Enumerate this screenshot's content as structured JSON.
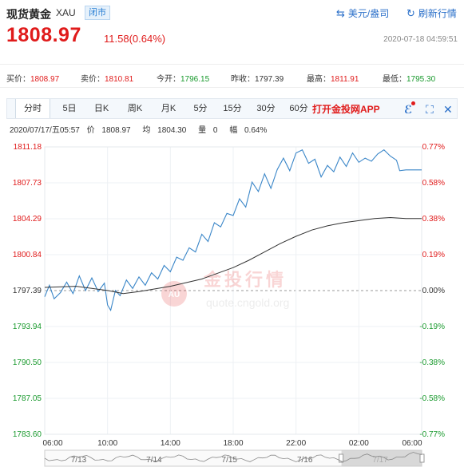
{
  "header": {
    "title": "现货黄金",
    "symbol": "XAU",
    "status": "闭市",
    "currency_label": "美元/盎司",
    "refresh_label": "刷新行情",
    "price": "1808.97",
    "change": "11.58(0.64%)",
    "datetime": "2020-07-18 04:59:51"
  },
  "stats": {
    "buy_label": "买价：",
    "buy": "1808.97",
    "sell_label": "卖价：",
    "sell": "1810.81",
    "open_label": "今开：",
    "open": "1796.15",
    "prev_label": "昨收：",
    "prev": "1797.39",
    "high_label": "最高：",
    "high": "1811.91",
    "low_label": "最低：",
    "low": "1795.30"
  },
  "tabs": [
    "分时",
    "5日",
    "日K",
    "周K",
    "月K",
    "5分",
    "15分",
    "30分",
    "60分"
  ],
  "promo": "打开金投网APP",
  "info": {
    "date": "2020/07/17/五05:57",
    "price_label": "价",
    "price": "1808.97",
    "avg_label": "均",
    "avg": "1804.30",
    "vol_label": "量",
    "vol": "0",
    "amp_label": "幅",
    "amp": "0.64%"
  },
  "watermark": {
    "brand": "金投行情",
    "url": "quote.cngold.org",
    "logo": "AU"
  },
  "colors": {
    "up": "#e01b1b",
    "down": "#1a9a2e",
    "line": "#3a86c8",
    "avg": "#333333",
    "accent": "#2a6fc9"
  },
  "chart_data": {
    "type": "line",
    "base": 1797.39,
    "y_labels": [
      "1811.18",
      "1807.73",
      "1804.29",
      "1800.84",
      "1797.39",
      "1793.94",
      "1790.50",
      "1787.05",
      "1783.60"
    ],
    "pct_labels": [
      "0.77%",
      "0.58%",
      "0.38%",
      "0.19%",
      "0.00%",
      "-0.19%",
      "-0.38%",
      "-0.58%",
      "-0.77%"
    ],
    "x_labels": [
      "06:00",
      "10:00",
      "14:00",
      "18:00",
      "22:00",
      "02:00",
      "06:00"
    ],
    "ylim": [
      1783.6,
      1811.18
    ],
    "xlim": [
      0,
      24
    ],
    "series": [
      {
        "key": "price",
        "points": [
          [
            0,
            1796.8
          ],
          [
            0.3,
            1797.9
          ],
          [
            0.6,
            1796.6
          ],
          [
            1,
            1797.2
          ],
          [
            1.4,
            1798.2
          ],
          [
            1.8,
            1797.1
          ],
          [
            2.2,
            1798.8
          ],
          [
            2.6,
            1797.4
          ],
          [
            3,
            1798.6
          ],
          [
            3.4,
            1797.3
          ],
          [
            3.8,
            1798.1
          ],
          [
            4,
            1796.0
          ],
          [
            4.2,
            1795.5
          ],
          [
            4.5,
            1797.4
          ],
          [
            4.8,
            1796.9
          ],
          [
            5.2,
            1798.4
          ],
          [
            5.6,
            1797.6
          ],
          [
            6,
            1798.7
          ],
          [
            6.4,
            1797.9
          ],
          [
            6.8,
            1799.1
          ],
          [
            7.2,
            1798.5
          ],
          [
            7.6,
            1799.8
          ],
          [
            8,
            1799.2
          ],
          [
            8.4,
            1800.6
          ],
          [
            8.8,
            1800.3
          ],
          [
            9.2,
            1801.5
          ],
          [
            9.6,
            1801.1
          ],
          [
            10,
            1802.8
          ],
          [
            10.4,
            1802.1
          ],
          [
            10.8,
            1803.9
          ],
          [
            11.2,
            1803.5
          ],
          [
            11.6,
            1804.8
          ],
          [
            12,
            1804.6
          ],
          [
            12.4,
            1806.2
          ],
          [
            12.8,
            1805.4
          ],
          [
            13.2,
            1807.8
          ],
          [
            13.6,
            1806.9
          ],
          [
            14,
            1808.6
          ],
          [
            14.4,
            1807.2
          ],
          [
            14.8,
            1809.0
          ],
          [
            15.2,
            1810.1
          ],
          [
            15.6,
            1808.9
          ],
          [
            16,
            1810.6
          ],
          [
            16.4,
            1810.9
          ],
          [
            16.8,
            1809.6
          ],
          [
            17.2,
            1810.0
          ],
          [
            17.6,
            1808.3
          ],
          [
            18,
            1809.4
          ],
          [
            18.4,
            1808.8
          ],
          [
            18.8,
            1810.2
          ],
          [
            19.2,
            1809.3
          ],
          [
            19.6,
            1810.6
          ],
          [
            20,
            1809.7
          ],
          [
            20.4,
            1810.1
          ],
          [
            20.8,
            1809.8
          ],
          [
            21.2,
            1810.5
          ],
          [
            21.6,
            1810.9
          ],
          [
            22,
            1810.3
          ],
          [
            22.4,
            1809.9
          ],
          [
            22.6,
            1808.9
          ],
          [
            23,
            1808.97
          ],
          [
            24,
            1808.97
          ]
        ]
      },
      {
        "key": "avg",
        "points": [
          [
            0,
            1797.7
          ],
          [
            2,
            1797.8
          ],
          [
            4,
            1797.4
          ],
          [
            5,
            1797.1
          ],
          [
            6,
            1797.3
          ],
          [
            8,
            1797.8
          ],
          [
            10,
            1798.5
          ],
          [
            12,
            1799.6
          ],
          [
            13,
            1800.3
          ],
          [
            14,
            1801.1
          ],
          [
            15,
            1801.9
          ],
          [
            16,
            1802.6
          ],
          [
            17,
            1803.2
          ],
          [
            18,
            1803.6
          ],
          [
            19,
            1803.9
          ],
          [
            20,
            1804.1
          ],
          [
            21,
            1804.3
          ],
          [
            22,
            1804.4
          ],
          [
            23,
            1804.3
          ],
          [
            24,
            1804.3
          ]
        ]
      }
    ],
    "mini_nav_labels": [
      "7/13",
      "7/14",
      "7/15",
      "7/16",
      "7/17"
    ]
  }
}
